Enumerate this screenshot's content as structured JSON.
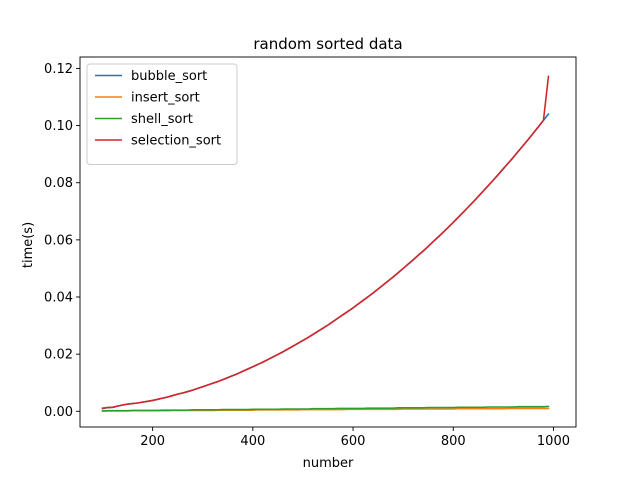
{
  "chart_data": {
    "type": "line",
    "title": "random sorted data",
    "xlabel": "number",
    "ylabel": "time(s)",
    "xlim": [
      55,
      1045
    ],
    "ylim": [
      -0.0055,
      0.124
    ],
    "xticks": [
      200,
      400,
      600,
      800,
      1000
    ],
    "xtick_labels": [
      "200",
      "400",
      "600",
      "800",
      "1000"
    ],
    "yticks": [
      0.0,
      0.02,
      0.04,
      0.06,
      0.08,
      0.1,
      0.12
    ],
    "ytick_labels": [
      "0.00",
      "0.02",
      "0.04",
      "0.06",
      "0.08",
      "0.10",
      "0.12"
    ],
    "grid": false,
    "legend_position": "top-left",
    "x": [
      100,
      110,
      120,
      130,
      140,
      150,
      160,
      170,
      180,
      190,
      200,
      210,
      220,
      230,
      240,
      250,
      260,
      270,
      280,
      290,
      300,
      310,
      320,
      330,
      340,
      350,
      360,
      370,
      380,
      390,
      400,
      410,
      420,
      430,
      440,
      450,
      460,
      470,
      480,
      490,
      500,
      510,
      520,
      530,
      540,
      550,
      560,
      570,
      580,
      590,
      600,
      610,
      620,
      630,
      640,
      650,
      660,
      670,
      680,
      690,
      700,
      710,
      720,
      730,
      740,
      750,
      760,
      770,
      780,
      790,
      800,
      810,
      820,
      830,
      840,
      850,
      860,
      870,
      880,
      890,
      900,
      910,
      920,
      930,
      940,
      950,
      960,
      970,
      980,
      990
    ],
    "series": [
      {
        "name": "bubble_sort",
        "color": "#1f77b4",
        "values": [
          0.0009,
          0.0013,
          0.0014,
          0.0018,
          0.0022,
          0.0025,
          0.0027,
          0.0029,
          0.0032,
          0.0035,
          0.0038,
          0.0042,
          0.0046,
          0.005,
          0.0055,
          0.006,
          0.0064,
          0.0069,
          0.0074,
          0.008,
          0.0086,
          0.0092,
          0.0098,
          0.0104,
          0.0111,
          0.0118,
          0.0125,
          0.0132,
          0.014,
          0.0148,
          0.0156,
          0.0164,
          0.0172,
          0.0181,
          0.019,
          0.0199,
          0.0208,
          0.0218,
          0.0228,
          0.0238,
          0.0248,
          0.0258,
          0.0269,
          0.028,
          0.0291,
          0.0302,
          0.0314,
          0.0326,
          0.0338,
          0.035,
          0.0362,
          0.0375,
          0.0388,
          0.0401,
          0.0414,
          0.0428,
          0.0442,
          0.0456,
          0.047,
          0.0485,
          0.05,
          0.0515,
          0.053,
          0.0546,
          0.0561,
          0.0577,
          0.0594,
          0.061,
          0.0627,
          0.0644,
          0.0661,
          0.0679,
          0.0697,
          0.0715,
          0.0733,
          0.0752,
          0.0771,
          0.079,
          0.0809,
          0.0829,
          0.0849,
          0.0869,
          0.0889,
          0.091,
          0.0931,
          0.0952,
          0.0974,
          0.0996,
          0.1018,
          0.104
        ]
      },
      {
        "name": "insert_sort",
        "color": "#ff7f0e",
        "values": [
          0.0001,
          0.0001,
          0.0001,
          0.0001,
          0.0001,
          0.0001,
          0.0002,
          0.0002,
          0.0002,
          0.0002,
          0.0002,
          0.0002,
          0.0002,
          0.0002,
          0.0003,
          0.0003,
          0.0003,
          0.0003,
          0.0003,
          0.0003,
          0.0003,
          0.0003,
          0.0003,
          0.0004,
          0.0004,
          0.0004,
          0.0004,
          0.0004,
          0.0004,
          0.0004,
          0.0004,
          0.0005,
          0.0005,
          0.0005,
          0.0005,
          0.0005,
          0.0005,
          0.0005,
          0.0005,
          0.0005,
          0.0006,
          0.0006,
          0.0006,
          0.0006,
          0.0006,
          0.0006,
          0.0006,
          0.0006,
          0.0006,
          0.0007,
          0.0007,
          0.0007,
          0.0007,
          0.0007,
          0.0007,
          0.0007,
          0.0007,
          0.0007,
          0.0007,
          0.0007,
          0.0008,
          0.0008,
          0.0008,
          0.0008,
          0.0008,
          0.0008,
          0.0008,
          0.0008,
          0.0008,
          0.0008,
          0.0008,
          0.0009,
          0.0009,
          0.0009,
          0.0009,
          0.0009,
          0.0009,
          0.0009,
          0.0009,
          0.0009,
          0.0009,
          0.001,
          0.001,
          0.001,
          0.001,
          0.001,
          0.001,
          0.001,
          0.001,
          0.001
        ]
      },
      {
        "name": "shell_sort",
        "color": "#2ca02c",
        "values": [
          0.0001,
          0.0002,
          0.0002,
          0.0002,
          0.0002,
          0.0002,
          0.0003,
          0.0003,
          0.0003,
          0.0003,
          0.0003,
          0.0003,
          0.0004,
          0.0004,
          0.0004,
          0.0004,
          0.0004,
          0.0004,
          0.0005,
          0.0005,
          0.0005,
          0.0005,
          0.0005,
          0.0005,
          0.0006,
          0.0006,
          0.0006,
          0.0006,
          0.0006,
          0.0006,
          0.0007,
          0.0007,
          0.0007,
          0.0007,
          0.0007,
          0.0007,
          0.0008,
          0.0008,
          0.0008,
          0.0008,
          0.0008,
          0.0008,
          0.0009,
          0.0009,
          0.0009,
          0.0009,
          0.0009,
          0.001,
          0.001,
          0.001,
          0.001,
          0.001,
          0.001,
          0.0011,
          0.0011,
          0.0011,
          0.0011,
          0.0011,
          0.0011,
          0.0012,
          0.0012,
          0.0012,
          0.0012,
          0.0012,
          0.0012,
          0.0013,
          0.0013,
          0.0013,
          0.0013,
          0.0013,
          0.0013,
          0.0014,
          0.0014,
          0.0014,
          0.0014,
          0.0014,
          0.0014,
          0.0015,
          0.0015,
          0.0015,
          0.0015,
          0.0015,
          0.0015,
          0.0016,
          0.0016,
          0.0016,
          0.0016,
          0.0016,
          0.0016,
          0.0017
        ]
      },
      {
        "name": "selection_sort",
        "color": "#d62728",
        "values": [
          0.0011,
          0.0013,
          0.0014,
          0.0018,
          0.0022,
          0.0025,
          0.0027,
          0.0029,
          0.0032,
          0.0035,
          0.0038,
          0.0042,
          0.0046,
          0.005,
          0.0055,
          0.006,
          0.0064,
          0.0069,
          0.0074,
          0.008,
          0.0086,
          0.0092,
          0.0098,
          0.0104,
          0.0111,
          0.0118,
          0.0125,
          0.0132,
          0.014,
          0.0148,
          0.0156,
          0.0164,
          0.0172,
          0.0181,
          0.019,
          0.0199,
          0.0208,
          0.0218,
          0.0228,
          0.0238,
          0.0248,
          0.0258,
          0.0269,
          0.028,
          0.0291,
          0.0302,
          0.0314,
          0.0326,
          0.0338,
          0.035,
          0.0362,
          0.0375,
          0.0388,
          0.0401,
          0.0414,
          0.0428,
          0.0442,
          0.0456,
          0.047,
          0.0485,
          0.05,
          0.0515,
          0.053,
          0.0546,
          0.0561,
          0.0577,
          0.0594,
          0.061,
          0.0627,
          0.0644,
          0.0661,
          0.0679,
          0.0697,
          0.0715,
          0.0733,
          0.0752,
          0.0771,
          0.079,
          0.0809,
          0.0829,
          0.0849,
          0.0869,
          0.0889,
          0.091,
          0.0931,
          0.0952,
          0.0974,
          0.0996,
          0.1018,
          0.1172
        ]
      }
    ]
  }
}
